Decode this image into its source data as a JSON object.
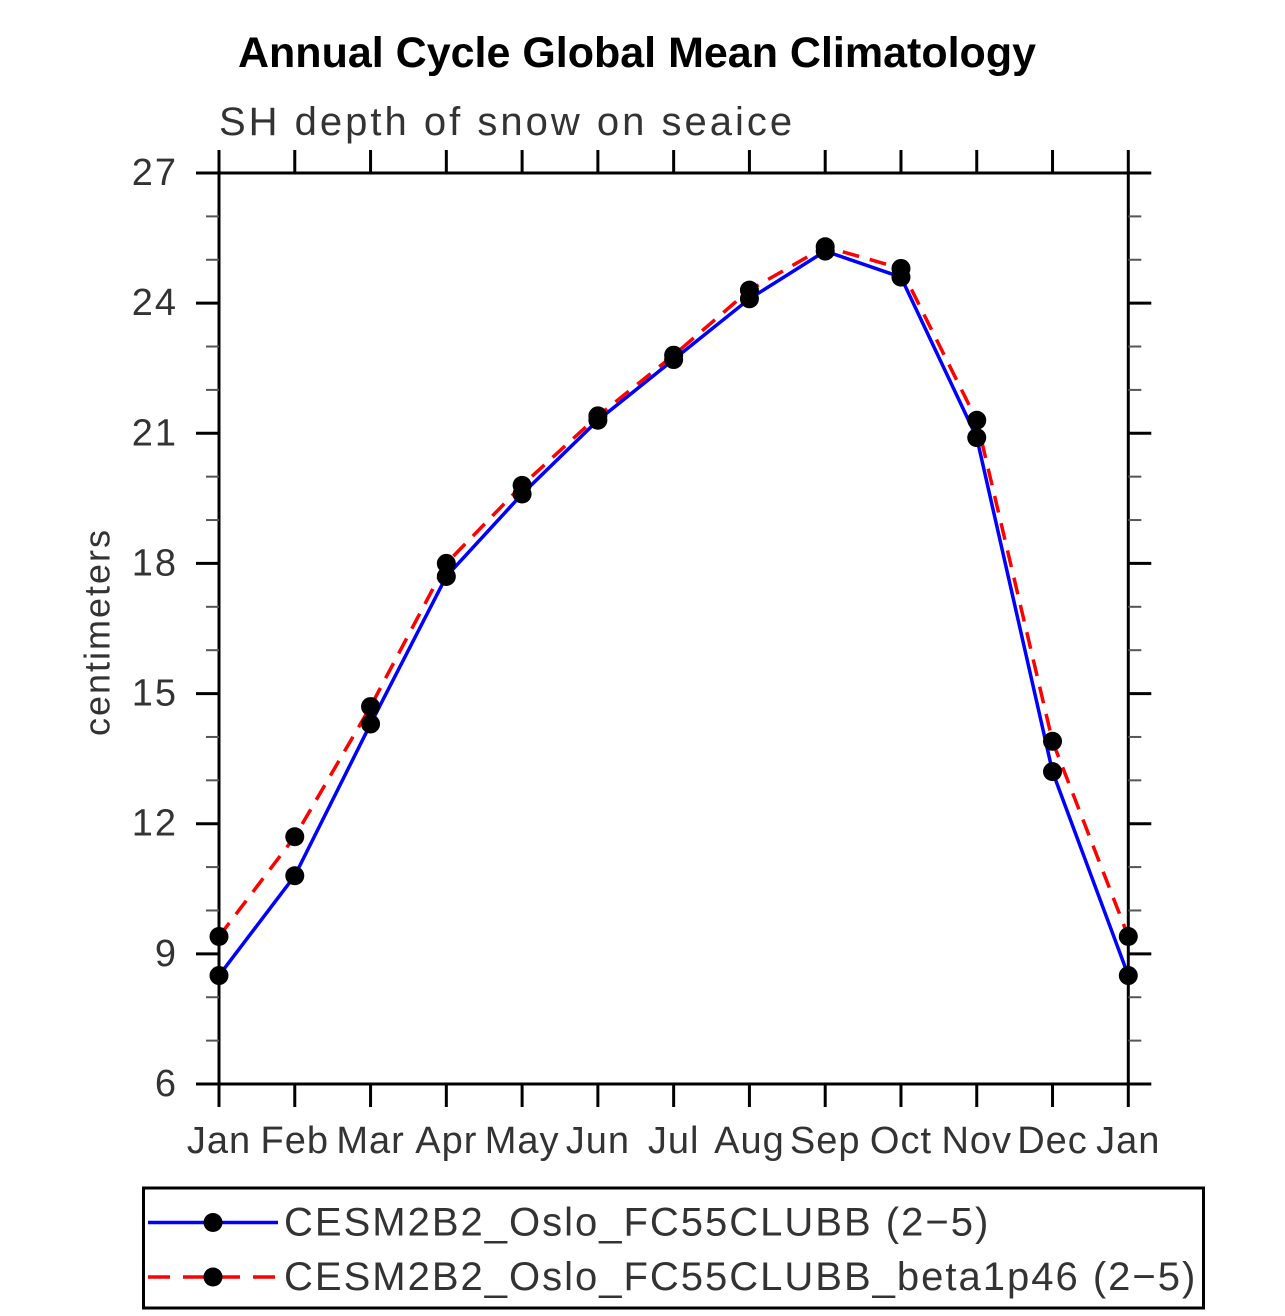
{
  "page": {
    "background": "#ffffff"
  },
  "chart_data": {
    "type": "line",
    "title": "Annual Cycle Global Mean Climatology",
    "subtitle": "SH depth of snow on seaice",
    "ylabel": "centimeters",
    "xlabel": "",
    "categories": [
      "Jan",
      "Feb",
      "Mar",
      "Apr",
      "May",
      "Jun",
      "Jul",
      "Aug",
      "Sep",
      "Oct",
      "Nov",
      "Dec",
      "Jan"
    ],
    "ylim": [
      6,
      27
    ],
    "y_major_ticks": [
      6,
      9,
      12,
      15,
      18,
      21,
      24,
      27
    ],
    "y_minor_step": 1,
    "grid": false,
    "legend_position": "bottom-left-box",
    "series": [
      {
        "name": "CESM2B2_Oslo_FC55CLUBB (2−5)",
        "color": "#0000ff",
        "line_style": "solid",
        "marker": "circle",
        "marker_color": "#000000",
        "values": [
          8.5,
          10.8,
          14.3,
          17.7,
          19.6,
          21.3,
          22.7,
          24.1,
          25.2,
          24.6,
          20.9,
          13.2,
          8.5
        ]
      },
      {
        "name": "CESM2B2_Oslo_FC55CLUBB_beta1p46 (2−5)",
        "color": "#ff0000",
        "line_style": "dashed",
        "marker": "circle",
        "marker_color": "#000000",
        "values": [
          9.4,
          11.7,
          14.7,
          18.0,
          19.8,
          21.4,
          22.8,
          24.3,
          25.3,
          24.8,
          21.3,
          13.9,
          9.4
        ]
      }
    ]
  },
  "colors": {
    "frame": "#000000",
    "major_tick": "#000000",
    "minor_tick": "#555555",
    "title_text": "#000000",
    "thin_text": "#333333"
  }
}
